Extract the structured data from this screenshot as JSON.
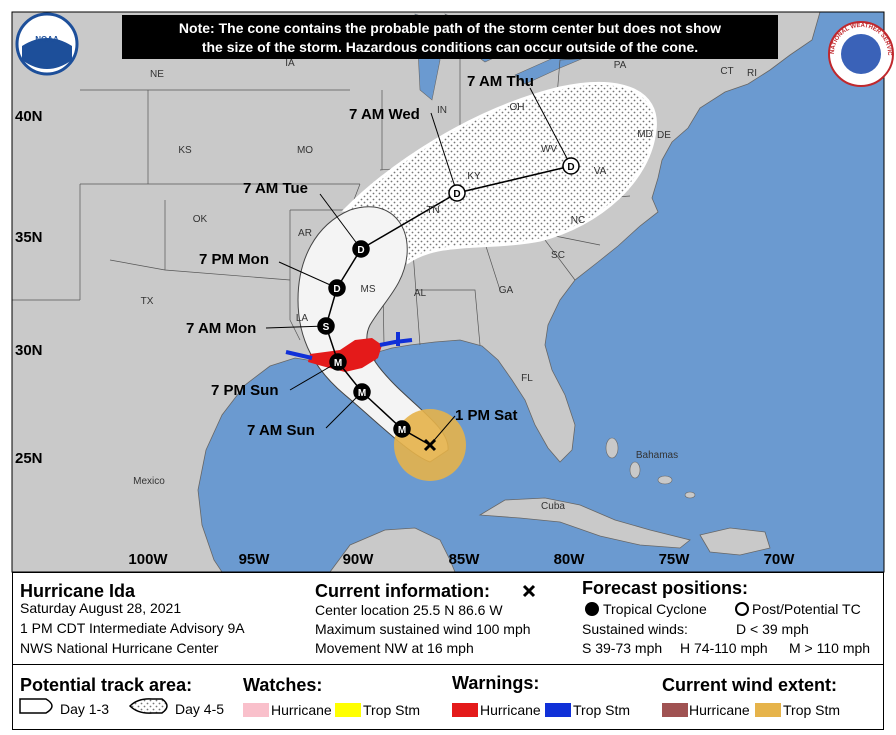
{
  "header": {
    "note": [
      "Note: The cone contains the probable path of the storm center but does not show",
      "the size of the storm. Hazardous conditions can occur outside of the cone."
    ],
    "noaa_logo": "NOAA",
    "nws_logo": "NATIONAL WEATHER SERVICE"
  },
  "map": {
    "latitude_labels": [
      "40N",
      "35N",
      "30N",
      "25N"
    ],
    "longitude_labels": [
      "100W",
      "95W",
      "90W",
      "85W",
      "80W",
      "75W",
      "70W"
    ],
    "place_labels": [
      "NE",
      "IA",
      "KS",
      "MO",
      "OK",
      "AR",
      "TX",
      "LA",
      "MS",
      "AL",
      "GA",
      "TN",
      "KY",
      "IN",
      "OH",
      "WV",
      "VA",
      "PA",
      "NC",
      "SC",
      "FL",
      "CT",
      "RI",
      "MD",
      "DE",
      "Mexico",
      "Bahamas",
      "Cuba"
    ],
    "forecast_points": [
      {
        "label": "1 PM Sat"
      },
      {
        "symbol": "M"
      },
      {
        "label": "7 AM Sun",
        "symbol": "M"
      },
      {
        "label": "7 PM Sun",
        "symbol": "M"
      },
      {
        "label": "7 AM Mon",
        "symbol": "S"
      },
      {
        "label": "7 PM Mon",
        "symbol": "D"
      },
      {
        "label": "7 AM Tue",
        "symbol": "D"
      },
      {
        "label": "7 AM Wed",
        "symbol": "D"
      },
      {
        "label": "7 AM Thu",
        "symbol": "D"
      }
    ]
  },
  "storm": {
    "name": "Hurricane Ida",
    "date": "Saturday August 28, 2021",
    "advisory": "1 PM CDT Intermediate Advisory 9A",
    "center": "NWS National Hurricane Center"
  },
  "current_information": {
    "title": "Current information:",
    "lines": [
      "Center location 25.5 N 86.6 W",
      "Maximum sustained wind 100 mph",
      "Movement NW at 16 mph"
    ]
  },
  "forecast_positions": {
    "title": "Forecast positions:",
    "tropical_cyclone": "Tropical Cyclone",
    "post_potential": "Post/Potential TC",
    "sustained_winds": "Sustained winds:",
    "d": "D < 39 mph",
    "s": "S 39-73 mph",
    "h": "H 74-110 mph",
    "m": "M > 110 mph"
  },
  "legend": {
    "track_area": {
      "title": "Potential track area:",
      "day13": "Day 1-3",
      "day45": "Day 4-5"
    },
    "watches": {
      "title": "Watches:",
      "hurricane": "Hurricane",
      "trop_stm": "Trop Stm"
    },
    "warnings": {
      "title": "Warnings:",
      "hurricane": "Hurricane",
      "trop_stm": "Trop Stm"
    },
    "wind_extent": {
      "title": "Current wind extent:",
      "hurricane": "Hurricane",
      "trop_stm": "Trop Stm"
    }
  }
}
